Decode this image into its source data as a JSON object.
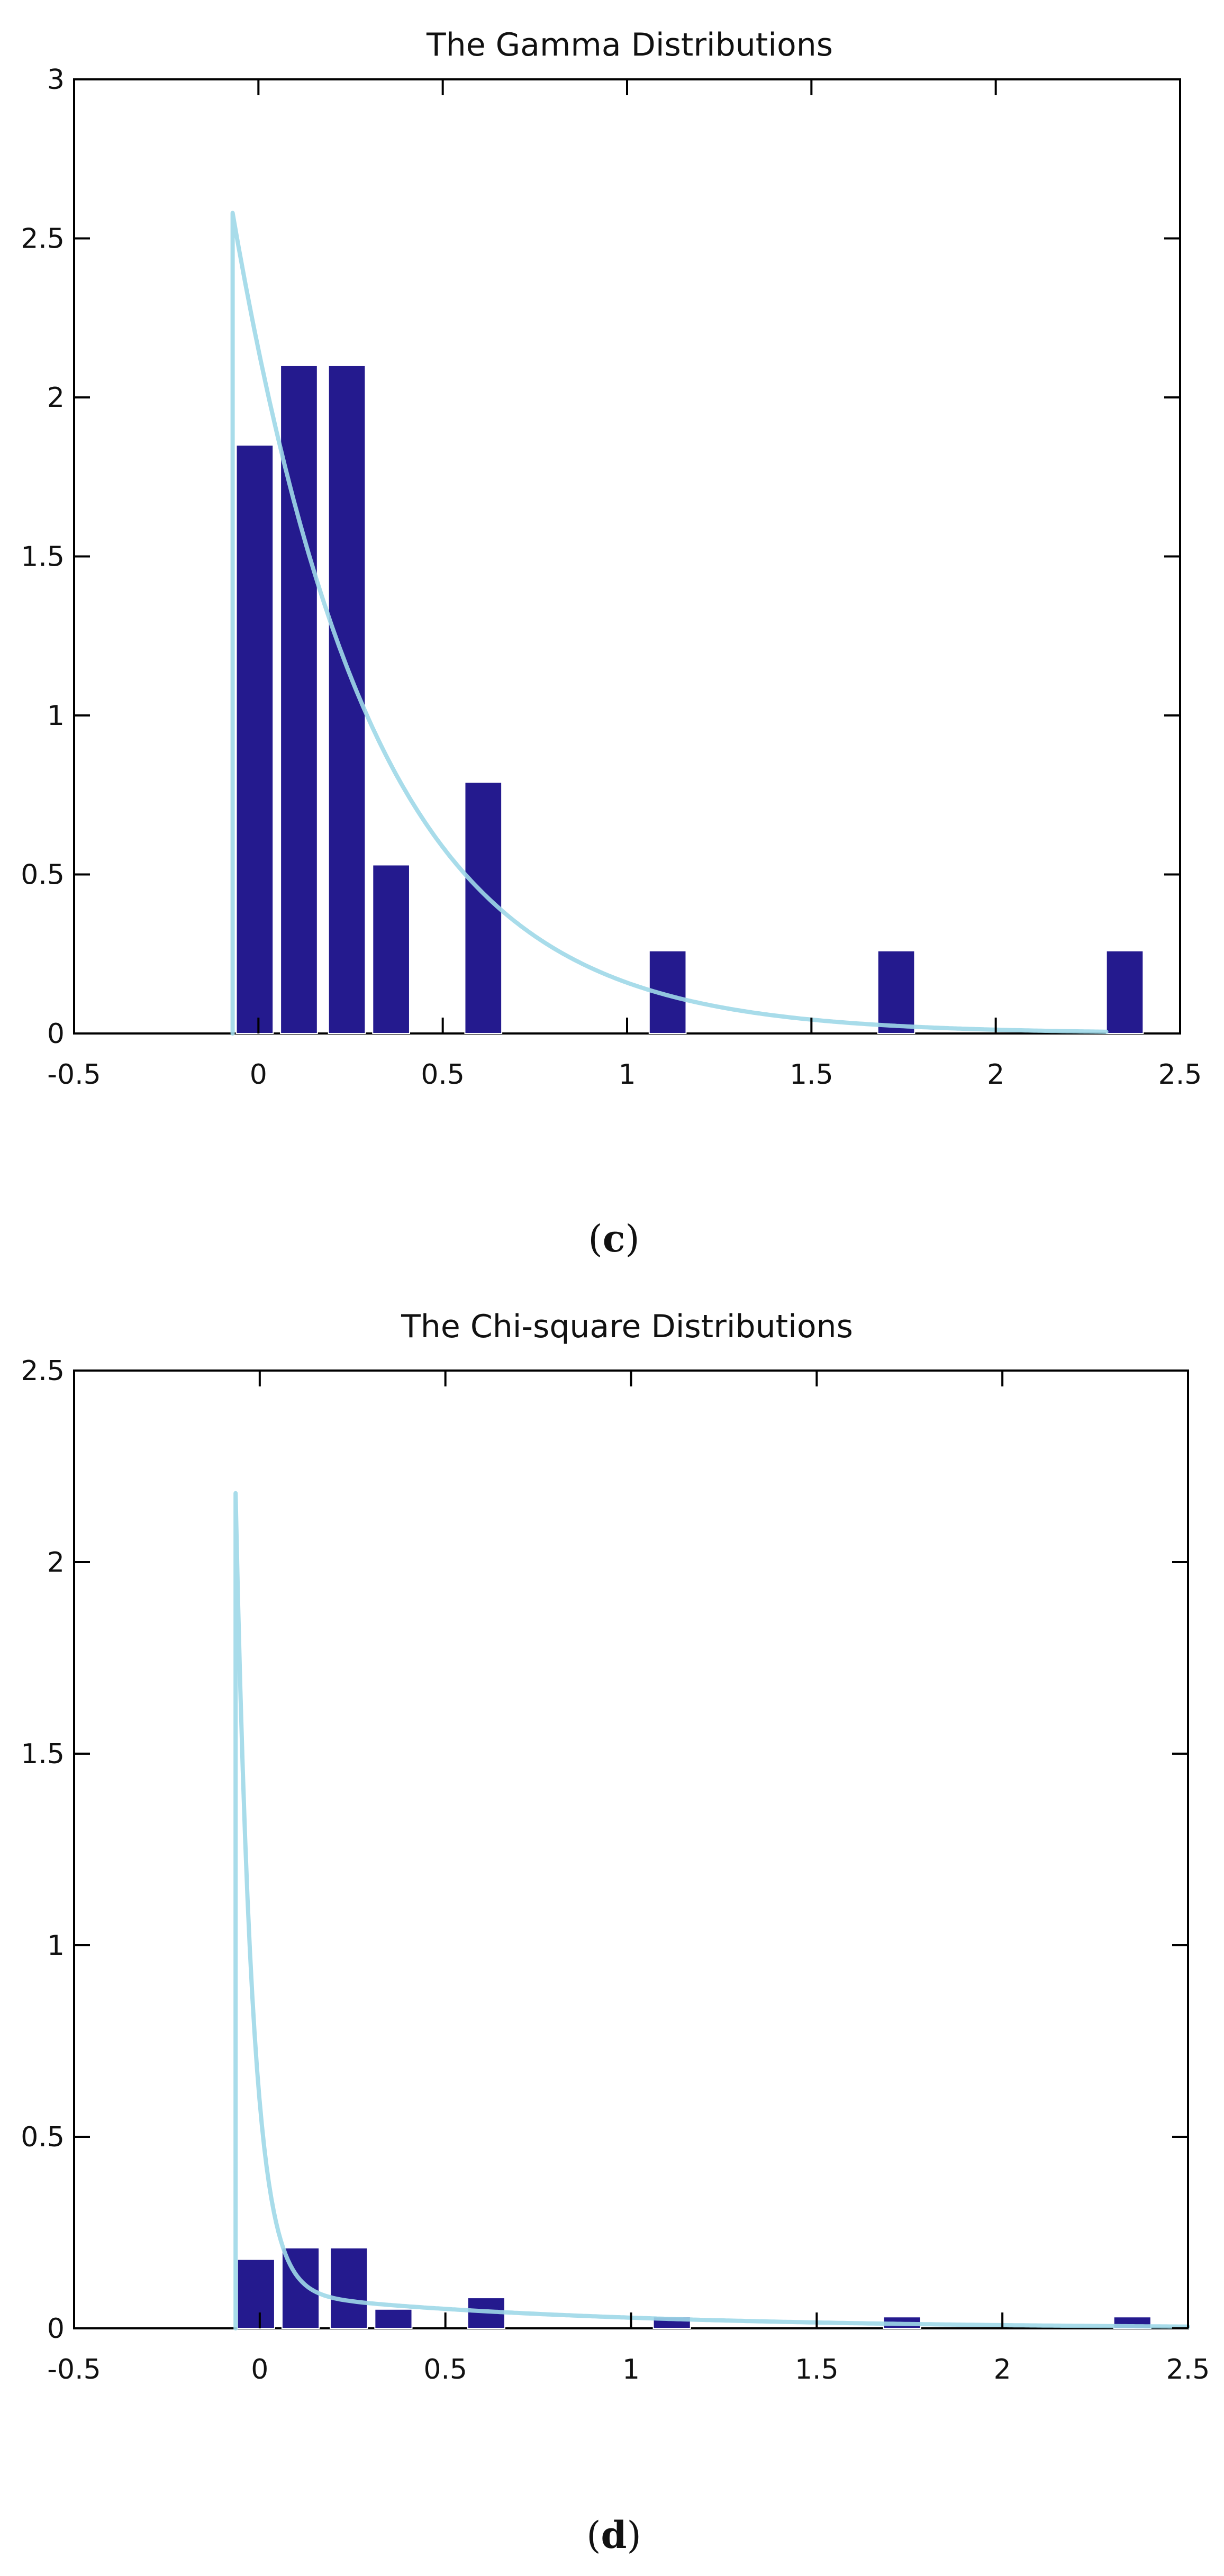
{
  "colors": {
    "bar": "#241A8E",
    "curve": "#9ED8E8",
    "axis": "#000000"
  },
  "chart_data": [
    {
      "type": "bar",
      "title": "The Gamma Distributions",
      "caption_open": "(",
      "caption_letter": "c",
      "caption_close": ")",
      "xlabel": "",
      "ylabel": "",
      "xlim": [
        -0.5,
        2.5
      ],
      "ylim": [
        0,
        3
      ],
      "xticks": [
        -0.5,
        0,
        0.5,
        1,
        1.5,
        2,
        2.5
      ],
      "xtick_labels": [
        "-0.5",
        "0",
        "0.5",
        "1",
        "1.5",
        "2",
        "2.5"
      ],
      "yticks": [
        0,
        0.5,
        1,
        1.5,
        2,
        2.5,
        3
      ],
      "ytick_labels": [
        "0",
        "0.5",
        "1",
        "1.5",
        "2",
        "2.5",
        "3"
      ],
      "bin_width": 0.1,
      "bars": [
        {
          "x": -0.01,
          "value": 1.85
        },
        {
          "x": 0.11,
          "value": 2.1
        },
        {
          "x": 0.24,
          "value": 2.1
        },
        {
          "x": 0.36,
          "value": 0.53
        },
        {
          "x": 0.61,
          "value": 0.79
        },
        {
          "x": 1.11,
          "value": 0.26
        },
        {
          "x": 1.73,
          "value": 0.26
        },
        {
          "x": 2.35,
          "value": 0.26
        }
      ],
      "curve": {
        "name": "gamma fit",
        "start": -0.07,
        "peak": 2.58,
        "decay": 2.6,
        "x_end": 2.3
      }
    },
    {
      "type": "bar",
      "title": "The Chi-square Distributions",
      "caption_open": "(",
      "caption_letter": "d",
      "caption_close": ")",
      "xlabel": "",
      "ylabel": "",
      "xlim": [
        -0.5,
        2.5
      ],
      "ylim": [
        0,
        2.5
      ],
      "xticks": [
        -0.5,
        0,
        0.5,
        1,
        1.5,
        2,
        2.5
      ],
      "xtick_labels": [
        "-0.5",
        "0",
        "0.5",
        "1",
        "1.5",
        "2",
        "2.5"
      ],
      "yticks": [
        0,
        0.5,
        1,
        1.5,
        2,
        2.5
      ],
      "ytick_labels": [
        "0",
        "0.5",
        "1",
        "1.5",
        "2",
        "2.5"
      ],
      "bin_width": 0.1,
      "bars": [
        {
          "x": -0.01,
          "value": 0.18
        },
        {
          "x": 0.11,
          "value": 0.21
        },
        {
          "x": 0.24,
          "value": 0.21
        },
        {
          "x": 0.36,
          "value": 0.05
        },
        {
          "x": 0.61,
          "value": 0.08
        },
        {
          "x": 1.11,
          "value": 0.03
        },
        {
          "x": 1.73,
          "value": 0.03
        },
        {
          "x": 2.35,
          "value": 0.03
        }
      ],
      "curve": {
        "name": "chi-square fit",
        "start": -0.065,
        "peak": 2.18,
        "decay": 22,
        "tail_level": 0.1,
        "tail_decay": 1.2,
        "x_end": 2.5
      }
    }
  ]
}
